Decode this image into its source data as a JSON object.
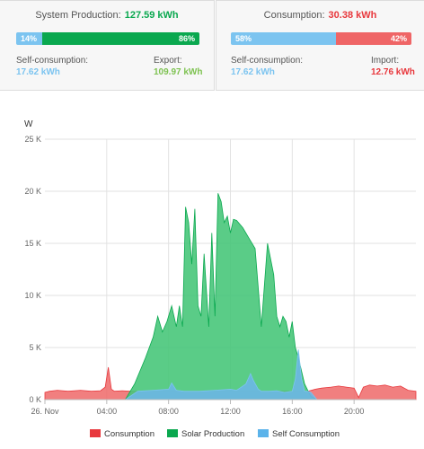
{
  "colors": {
    "production": "#0aa84f",
    "consumption": "#e8383d",
    "self": "#7cc4f0",
    "import_bar": "#ef6566",
    "solar_fill": "#48c77a",
    "cons_fill": "#ef6868",
    "self_fill": "#6cb7e6"
  },
  "production_panel": {
    "title": "System Production:",
    "value": "127.59 kWh",
    "self_pct_label": "14%",
    "export_pct_label": "86%",
    "self_fraction": 0.14,
    "export_fraction": 0.86,
    "self_label": "Self-consumption:",
    "self_value": "17.62 kWh",
    "export_label": "Export:",
    "export_value": "109.97 kWh"
  },
  "consumption_panel": {
    "title": "Consumption:",
    "value": "30.38 kWh",
    "self_pct_label": "58%",
    "import_pct_label": "42%",
    "self_fraction": 0.58,
    "import_fraction": 0.42,
    "self_label": "Self-consumption:",
    "self_value": "17.62 kWh",
    "import_label": "Import:",
    "import_value": "12.76 kWh"
  },
  "chart_data": {
    "type": "area",
    "ylabel": "W",
    "ylim": [
      0,
      25000
    ],
    "yticks": [
      0,
      5000,
      10000,
      15000,
      20000,
      25000
    ],
    "ytick_labels": [
      "0 K",
      "5 K",
      "10 K",
      "15 K",
      "20 K",
      "25 K"
    ],
    "xlim": [
      0,
      24
    ],
    "xticks": [
      0,
      4,
      8,
      12,
      16,
      20
    ],
    "xtick_labels": [
      "26. Nov",
      "04:00",
      "08:00",
      "12:00",
      "16:00",
      "20:00"
    ],
    "grid": true,
    "legend_position": "bottom",
    "series": [
      {
        "name": "Consumption",
        "x": [
          0,
          0.3,
          0.8,
          1.5,
          2.3,
          3.0,
          3.6,
          3.9,
          4.1,
          4.3,
          4.5,
          5.0,
          5.5,
          6.0,
          17.0,
          17.5,
          17.9,
          18.5,
          19.0,
          19.5,
          20.0,
          20.3,
          20.6,
          21.0,
          21.5,
          22.0,
          22.5,
          23.0,
          23.5,
          24.0
        ],
        "values": [
          700,
          800,
          900,
          800,
          900,
          800,
          850,
          1200,
          3100,
          1000,
          800,
          850,
          800,
          800,
          800,
          1000,
          1100,
          1200,
          1300,
          1200,
          1100,
          200,
          1200,
          1400,
          1300,
          1400,
          1200,
          1300,
          900,
          800
        ]
      },
      {
        "name": "Solar Production",
        "x": [
          5.2,
          5.8,
          6.5,
          7.0,
          7.3,
          7.6,
          7.9,
          8.2,
          8.5,
          8.7,
          8.9,
          9.1,
          9.3,
          9.5,
          9.7,
          9.9,
          10.1,
          10.3,
          10.6,
          10.8,
          11.0,
          11.2,
          11.4,
          11.6,
          11.8,
          12.0,
          12.2,
          12.4,
          12.8,
          13.2,
          13.6,
          14.0,
          14.4,
          14.8,
          15.0,
          15.2,
          15.4,
          15.6,
          15.8,
          16.0,
          16.2,
          16.4,
          16.8,
          17.2,
          17.6
        ],
        "values": [
          0,
          1500,
          4000,
          6000,
          8000,
          6500,
          7500,
          9000,
          7000,
          9000,
          7000,
          18500,
          17000,
          13000,
          18300,
          9000,
          8000,
          14000,
          7000,
          16000,
          8000,
          19800,
          19000,
          17000,
          17600,
          16000,
          17300,
          17200,
          16500,
          15500,
          14500,
          7000,
          15000,
          12000,
          8000,
          7000,
          8000,
          7500,
          6000,
          7500,
          5000,
          4000,
          1500,
          300,
          0
        ]
      },
      {
        "name": "Self Consumption",
        "x": [
          5.2,
          6.0,
          7.0,
          8.0,
          8.2,
          8.5,
          9.0,
          10.0,
          11.0,
          12.0,
          12.4,
          12.8,
          13.0,
          13.3,
          13.5,
          13.8,
          14.0,
          14.5,
          15.0,
          15.5,
          16.0,
          16.2,
          16.4,
          16.6,
          16.8,
          17.0,
          17.2,
          17.6
        ],
        "values": [
          0,
          800,
          900,
          1000,
          1600,
          900,
          800,
          800,
          900,
          1000,
          900,
          1300,
          1500,
          2500,
          1800,
          1000,
          800,
          800,
          850,
          700,
          800,
          2000,
          4800,
          2000,
          800,
          800,
          700,
          0
        ]
      }
    ]
  }
}
